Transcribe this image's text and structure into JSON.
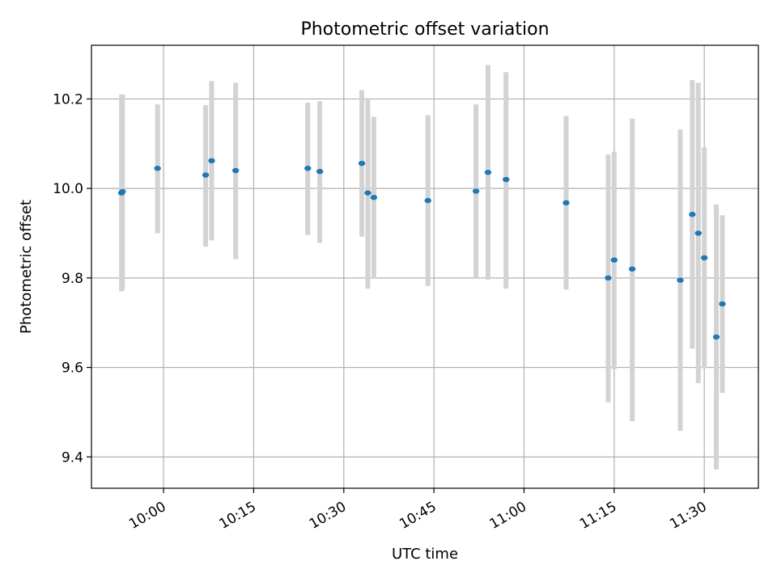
{
  "chart_data": {
    "type": "scatter",
    "title": "Photometric offset variation",
    "xlabel": "UTC time",
    "ylabel": "Photometric offset",
    "x_ticks": [
      "10:00",
      "10:15",
      "10:30",
      "10:45",
      "11:00",
      "11:15",
      "11:30"
    ],
    "y_ticks": [
      "9.4",
      "9.6",
      "9.8",
      "10.0",
      "10.2"
    ],
    "xlim": [
      "09:48",
      "11:39"
    ],
    "ylim": [
      9.33,
      10.32
    ],
    "grid": true,
    "colors": {
      "points": "#1f77b4",
      "error_bars": "#d3d3d3"
    },
    "points": [
      {
        "x": "09:53",
        "y": 9.99,
        "err_low": 9.77,
        "err_high": 10.21
      },
      {
        "x": "09:53",
        "y": 9.993,
        "err_low": 9.775,
        "err_high": 10.21
      },
      {
        "x": "09:59",
        "y": 10.045,
        "err_low": 9.9,
        "err_high": 10.188
      },
      {
        "x": "10:07",
        "y": 10.03,
        "err_low": 9.87,
        "err_high": 10.186
      },
      {
        "x": "10:08",
        "y": 10.062,
        "err_low": 9.884,
        "err_high": 10.24
      },
      {
        "x": "10:12",
        "y": 10.04,
        "err_low": 9.842,
        "err_high": 10.236
      },
      {
        "x": "10:24",
        "y": 10.045,
        "err_low": 9.896,
        "err_high": 10.192
      },
      {
        "x": "10:26",
        "y": 10.038,
        "err_low": 9.878,
        "err_high": 10.195
      },
      {
        "x": "10:33",
        "y": 10.056,
        "err_low": 9.892,
        "err_high": 10.22
      },
      {
        "x": "10:34",
        "y": 9.99,
        "err_low": 9.776,
        "err_high": 10.2
      },
      {
        "x": "10:35",
        "y": 9.98,
        "err_low": 9.8,
        "err_high": 10.16
      },
      {
        "x": "10:44",
        "y": 9.973,
        "err_low": 9.782,
        "err_high": 10.164
      },
      {
        "x": "10:52",
        "y": 9.994,
        "err_low": 9.8,
        "err_high": 10.188
      },
      {
        "x": "10:54",
        "y": 10.036,
        "err_low": 9.796,
        "err_high": 10.276
      },
      {
        "x": "10:57",
        "y": 10.02,
        "err_low": 9.776,
        "err_high": 10.26
      },
      {
        "x": "11:07",
        "y": 9.968,
        "err_low": 9.774,
        "err_high": 10.162
      },
      {
        "x": "11:14",
        "y": 9.8,
        "err_low": 9.522,
        "err_high": 10.076
      },
      {
        "x": "11:15",
        "y": 9.84,
        "err_low": 9.596,
        "err_high": 10.082
      },
      {
        "x": "11:18",
        "y": 9.82,
        "err_low": 9.48,
        "err_high": 10.156
      },
      {
        "x": "11:26",
        "y": 9.795,
        "err_low": 9.458,
        "err_high": 10.132
      },
      {
        "x": "11:28",
        "y": 9.942,
        "err_low": 9.642,
        "err_high": 10.242
      },
      {
        "x": "11:29",
        "y": 9.9,
        "err_low": 9.565,
        "err_high": 10.236
      },
      {
        "x": "11:30",
        "y": 9.845,
        "err_low": 9.598,
        "err_high": 10.092
      },
      {
        "x": "11:32",
        "y": 9.668,
        "err_low": 9.372,
        "err_high": 9.964
      },
      {
        "x": "11:33",
        "y": 9.742,
        "err_low": 9.543,
        "err_high": 9.94
      }
    ]
  }
}
